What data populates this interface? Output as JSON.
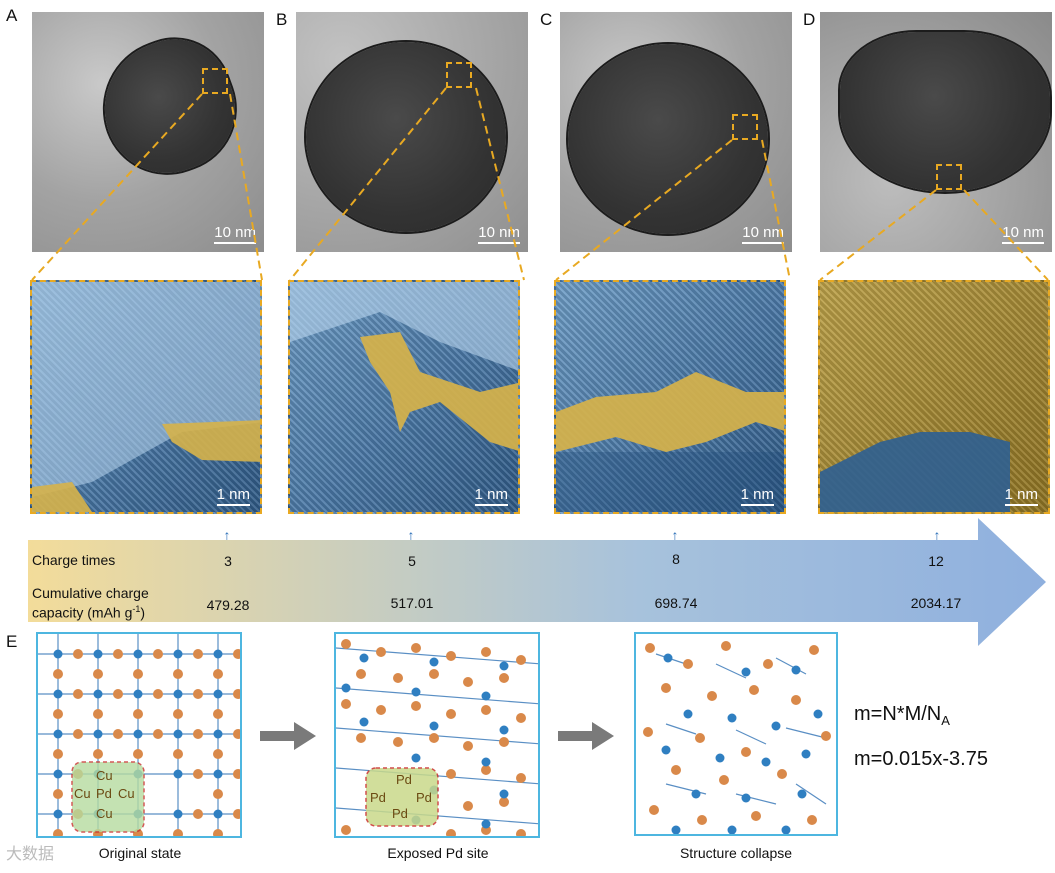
{
  "panels": [
    "A",
    "B",
    "C",
    "D",
    "E"
  ],
  "tem_scale": "10 nm",
  "zoom_scale": "1 nm",
  "timeline": {
    "label_charge": "Charge times",
    "label_capacity_line1": "Cumulative charge",
    "label_capacity_line2": "capacity (mAh g",
    "label_capacity_sup": "-1",
    "label_capacity_end": ")",
    "charge_times": [
      "3",
      "5",
      "8",
      "12"
    ],
    "capacities": [
      "479.28",
      "517.01",
      "698.74",
      "2034.17"
    ],
    "gradient_start": "#f3dc9a",
    "gradient_end": "#8fb0de"
  },
  "structures": {
    "captions": [
      "Original state",
      "Exposed Pd site",
      "Structure collapse"
    ],
    "site1": [
      "Cu",
      "Cu",
      "Pd",
      "Cu",
      "Cu"
    ],
    "site2": [
      "Pd",
      "Pd",
      "Pd",
      "Pd"
    ]
  },
  "equations": {
    "eq1_main": "m=N*M/N",
    "eq1_sub": "A",
    "eq2": "m=0.015x-3.75"
  },
  "colors": {
    "highlight_dash": "#e8a922",
    "cu_atom": "#d9894a",
    "pd_atom": "#2f7fc1",
    "box_border": "#4db6e0",
    "arrow_blue": "#2b6fb8"
  },
  "watermark": "大数据"
}
